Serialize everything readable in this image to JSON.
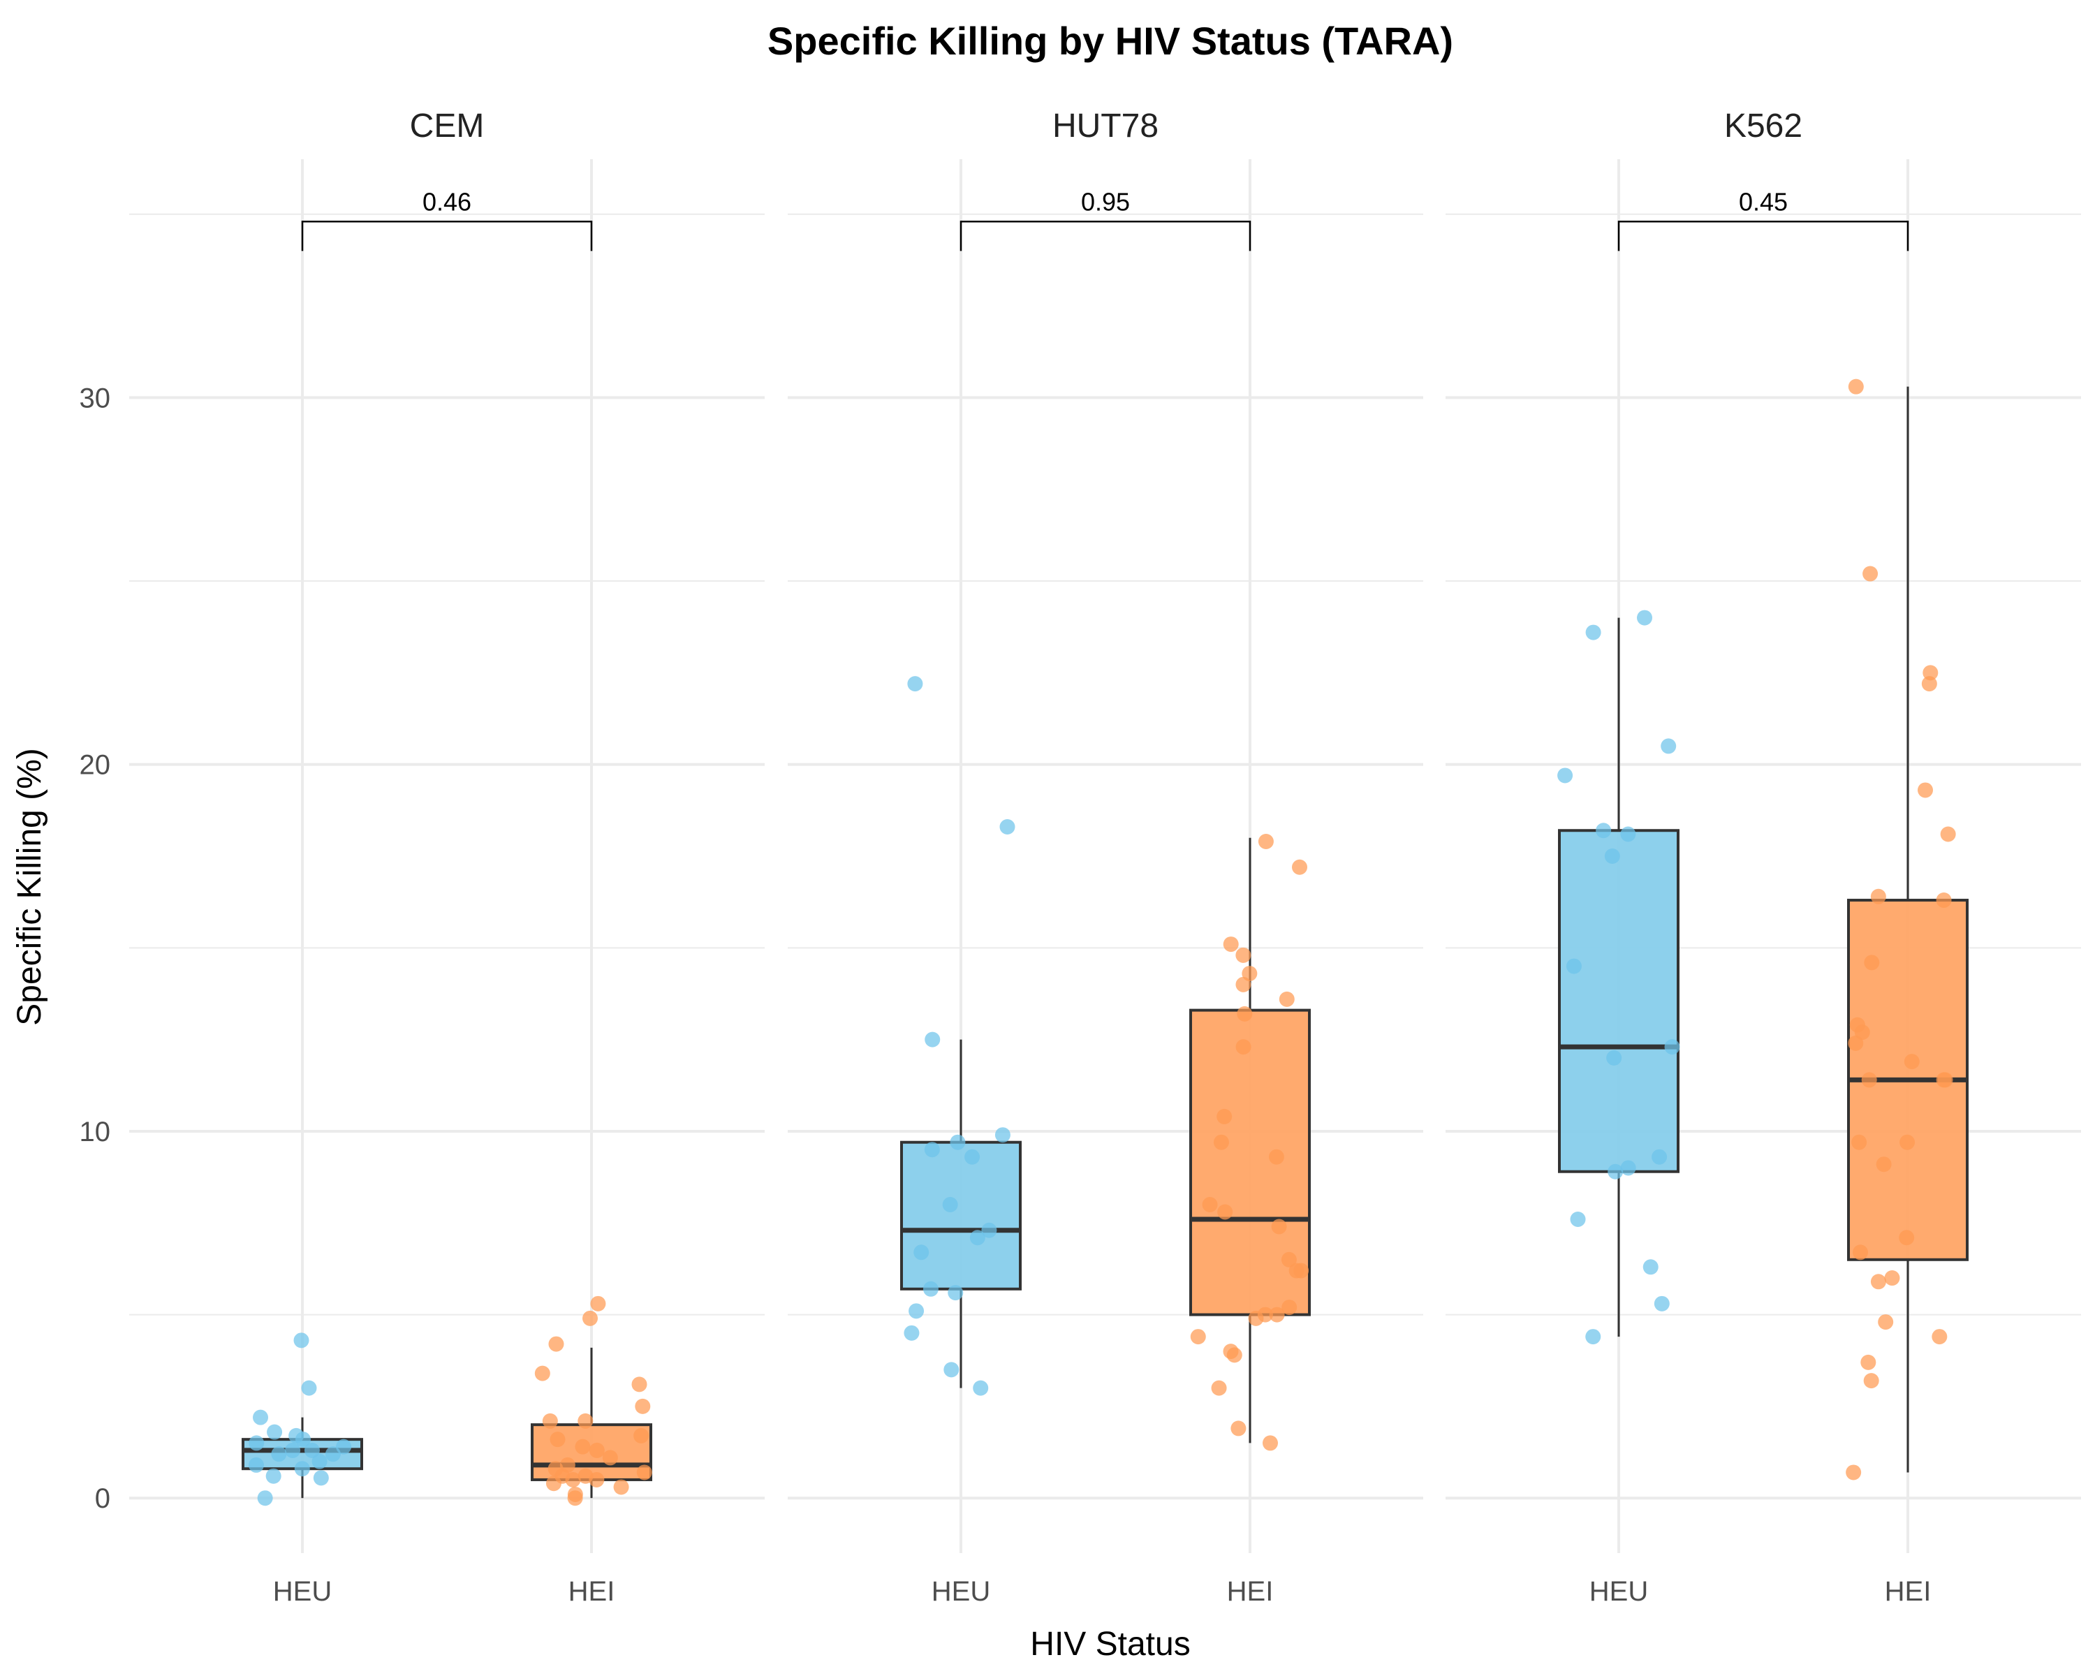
{
  "chart_data": {
    "type": "box",
    "title": "Specific Killing by HIV Status (TARA)",
    "xlabel": "HIV Status",
    "ylabel": "Specific Killing (%)",
    "ylim": [
      -1.5,
      36.5
    ],
    "yticks": [
      0,
      10,
      20,
      30
    ],
    "grid": true,
    "categories": [
      "HEU",
      "HEI"
    ],
    "colors": {
      "HEU": "#87ceeb",
      "HEI": "#ffa566",
      "HEU_point": "#6ec3ea",
      "HEI_point": "#ff9a52"
    },
    "panels": [
      {
        "name": "CEM",
        "p_value": "0.46",
        "groups": [
          {
            "name": "HEU",
            "box": {
              "whisker_low": 0.0,
              "q1": 0.8,
              "median": 1.3,
              "q3": 1.6,
              "whisker_high": 2.2
            },
            "points": [
              4.3,
              3.0,
              2.2,
              1.8,
              1.7,
              1.6,
              1.5,
              1.4,
              1.3,
              1.3,
              1.2,
              1.2,
              1.0,
              0.9,
              0.8,
              0.6,
              0.55,
              0.0
            ]
          },
          {
            "name": "HEI",
            "box": {
              "whisker_low": 0.0,
              "q1": 0.5,
              "median": 0.9,
              "q3": 2.0,
              "whisker_high": 4.1
            },
            "points": [
              5.3,
              4.9,
              4.2,
              3.4,
              3.1,
              2.5,
              2.1,
              2.1,
              1.7,
              1.6,
              1.4,
              1.3,
              1.1,
              0.9,
              0.8,
              0.7,
              0.6,
              0.6,
              0.5,
              0.5,
              0.4,
              0.3,
              0.1,
              0.0
            ]
          }
        ]
      },
      {
        "name": "HUT78",
        "p_value": "0.95",
        "groups": [
          {
            "name": "HEU",
            "box": {
              "whisker_low": 3.0,
              "q1": 5.7,
              "median": 7.3,
              "q3": 9.7,
              "whisker_high": 12.5
            },
            "points": [
              22.2,
              18.3,
              12.5,
              9.9,
              9.7,
              9.5,
              9.3,
              8.0,
              7.3,
              7.1,
              6.7,
              5.7,
              5.6,
              5.1,
              4.5,
              3.5,
              3.0
            ]
          },
          {
            "name": "HEI",
            "box": {
              "whisker_low": 1.5,
              "q1": 5.0,
              "median": 7.6,
              "q3": 13.3,
              "whisker_high": 18.0
            },
            "points": [
              17.9,
              17.2,
              15.1,
              14.8,
              14.3,
              14.0,
              13.6,
              13.2,
              12.3,
              10.4,
              9.7,
              9.3,
              8.0,
              7.8,
              7.4,
              6.5,
              6.2,
              6.2,
              5.2,
              5.0,
              5.0,
              4.9,
              4.4,
              4.0,
              3.9,
              3.0,
              1.9,
              1.5
            ]
          }
        ]
      },
      {
        "name": "K562",
        "p_value": "0.45",
        "groups": [
          {
            "name": "HEU",
            "box": {
              "whisker_low": 4.4,
              "q1": 8.9,
              "median": 12.3,
              "q3": 18.2,
              "whisker_high": 24.0
            },
            "points": [
              24.0,
              23.6,
              20.5,
              19.7,
              18.2,
              18.1,
              17.5,
              14.5,
              12.3,
              12.0,
              9.3,
              9.0,
              8.9,
              7.6,
              6.3,
              5.3,
              4.4
            ]
          },
          {
            "name": "HEI",
            "box": {
              "whisker_low": 0.7,
              "q1": 6.5,
              "median": 11.4,
              "q3": 16.3,
              "whisker_high": 30.3
            },
            "points": [
              30.3,
              25.2,
              22.5,
              22.2,
              19.3,
              18.1,
              16.4,
              16.3,
              14.6,
              12.9,
              12.7,
              12.4,
              11.9,
              11.4,
              11.4,
              11.4,
              9.7,
              9.7,
              9.1,
              7.1,
              6.7,
              6.0,
              5.9,
              4.8,
              4.4,
              3.7,
              3.2,
              0.7
            ]
          }
        ]
      }
    ]
  }
}
